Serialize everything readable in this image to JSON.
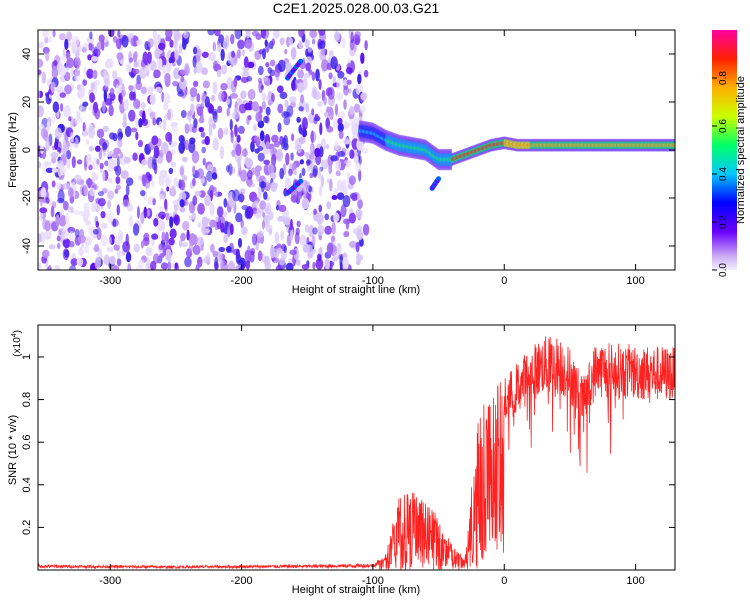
{
  "title": "C2E1.2025.028.00.03.G21",
  "chart_data": [
    {
      "type": "heatmap",
      "xlabel": "Height of straight line (km)",
      "ylabel": "Frequency (Hz)",
      "xlim": [
        -355,
        130
      ],
      "ylim": [
        -50,
        50
      ],
      "x_ticks": [
        -300,
        -200,
        -100,
        0,
        100
      ],
      "y_ticks": [
        -40,
        -20,
        0,
        20,
        40
      ],
      "colorbar": {
        "label": "Normalized spectral amplitude",
        "range": [
          0,
          1
        ],
        "ticks": [
          "0.0",
          "0.2",
          "0.4",
          "0.6",
          "0.8"
        ],
        "colormap": [
          "#f4f0fb",
          "#6a00ff",
          "#0000ff",
          "#00c8ff",
          "#00ff66",
          "#ccff00",
          "#ffb000",
          "#ff2000",
          "#ff00a0"
        ]
      },
      "noise_region": {
        "x": [
          -355,
          -105
        ],
        "freq": [
          -50,
          50
        ],
        "amplitude": 0.15
      },
      "signal_ridge": [
        [
          -110,
          8
        ],
        [
          -100,
          7
        ],
        [
          -90,
          4
        ],
        [
          -80,
          2
        ],
        [
          -70,
          1
        ],
        [
          -60,
          0
        ],
        [
          -50,
          -4
        ],
        [
          -40,
          -4
        ],
        [
          -30,
          -2
        ],
        [
          -20,
          0
        ],
        [
          -10,
          2
        ],
        [
          0,
          3
        ],
        [
          10,
          2
        ],
        [
          30,
          2
        ],
        [
          60,
          2
        ],
        [
          100,
          2
        ],
        [
          130,
          2
        ]
      ],
      "side_features": [
        {
          "x": [
            -165,
            -155
          ],
          "freq": [
            30,
            37
          ]
        },
        {
          "x": [
            -165,
            -155
          ],
          "freq": [
            -18,
            -13
          ]
        },
        {
          "x": [
            -55,
            -50
          ],
          "freq": [
            -16,
            -12
          ]
        }
      ]
    },
    {
      "type": "line",
      "xlabel": "Height of straight line (km)",
      "ylabel": "SNR (10 * v/v)",
      "y_multiplier": "(x10",
      "y_multiplier_exp": "4",
      "xlim": [
        -355,
        130
      ],
      "ylim": [
        0,
        11500
      ],
      "x_ticks": [
        -300,
        -200,
        -100,
        0,
        100
      ],
      "y_ticks": [
        0.2,
        0.4,
        0.6,
        0.8,
        1
      ],
      "color": "#ff2020",
      "envelope": [
        [
          -355,
          250
        ],
        [
          -250,
          200
        ],
        [
          -150,
          250
        ],
        [
          -100,
          300
        ],
        [
          -90,
          800
        ],
        [
          -80,
          3500
        ],
        [
          -70,
          3800
        ],
        [
          -60,
          3200
        ],
        [
          -50,
          2500
        ],
        [
          -40,
          1200
        ],
        [
          -30,
          500
        ],
        [
          -25,
          4000
        ],
        [
          -20,
          7500
        ],
        [
          -10,
          8500
        ],
        [
          0,
          9000
        ],
        [
          10,
          9800
        ],
        [
          20,
          10500
        ],
        [
          30,
          11000
        ],
        [
          40,
          11000
        ],
        [
          50,
          10500
        ],
        [
          60,
          9000
        ],
        [
          70,
          10800
        ],
        [
          80,
          10700
        ],
        [
          100,
          10600
        ],
        [
          130,
          10500
        ]
      ]
    }
  ]
}
